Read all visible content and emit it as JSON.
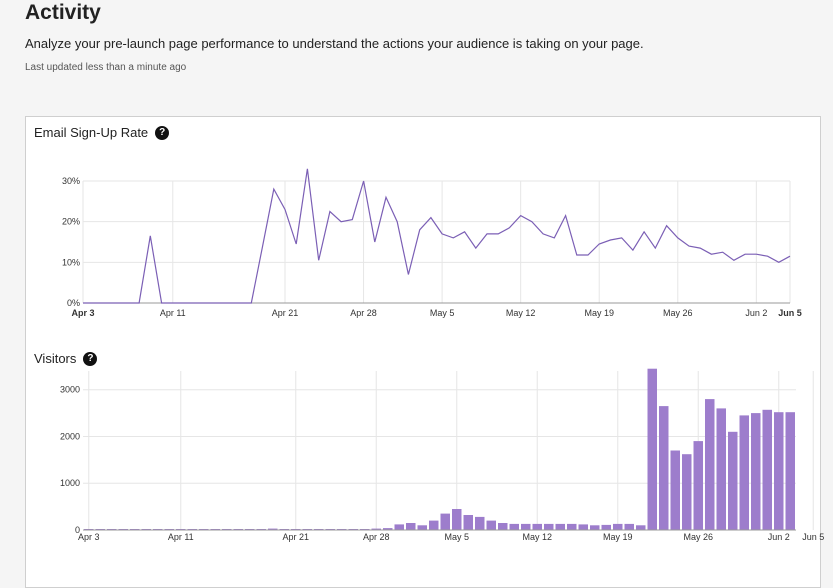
{
  "page": {
    "title": "Activity",
    "description": "Analyze your pre-launch page performance to understand the actions your audience is taking on your page.",
    "last_updated": "Last updated less than a minute ago"
  },
  "colors": {
    "line": "#7b5fb5",
    "bar": "#9d7dcc",
    "grid": "#e6e6e6"
  },
  "icons": {
    "help": "question-circle-icon",
    "help_glyph": "?"
  },
  "chart_data": [
    {
      "type": "line",
      "title": "Email Sign-Up Rate",
      "x_ticks": [
        {
          "label": "Apr 3",
          "day": 0,
          "bold": true
        },
        {
          "label": "Apr 11",
          "day": 8
        },
        {
          "label": "Apr 21",
          "day": 18
        },
        {
          "label": "Apr 28",
          "day": 25
        },
        {
          "label": "May 5",
          "day": 32
        },
        {
          "label": "May 12",
          "day": 39
        },
        {
          "label": "May 19",
          "day": 46
        },
        {
          "label": "May 26",
          "day": 53
        },
        {
          "label": "Jun 2",
          "day": 60
        },
        {
          "label": "Jun 5",
          "day": 63,
          "bold": true
        }
      ],
      "y_ticks": [
        "0%",
        "10%",
        "20%",
        "30%"
      ],
      "ylim": [
        0,
        30
      ],
      "values": [
        0,
        0,
        0,
        0,
        0,
        0,
        16.5,
        0,
        0,
        0,
        0,
        0,
        0,
        0,
        0,
        0,
        14,
        28,
        23,
        14.5,
        33,
        10.5,
        22.5,
        20,
        20.5,
        30,
        15,
        26,
        20,
        7,
        18,
        21,
        17,
        16,
        17.5,
        13.5,
        17,
        17,
        18.5,
        21.5,
        20,
        17,
        16,
        21.5,
        11.8,
        11.8,
        14.5,
        15.5,
        16,
        13,
        17.5,
        13.5,
        19,
        16,
        14,
        13.5,
        12,
        12.5,
        10.5,
        12,
        12,
        11.5,
        10,
        11.5
      ]
    },
    {
      "type": "bar",
      "title": "Visitors",
      "x_ticks": [
        {
          "label": "Apr 3",
          "day": 0
        },
        {
          "label": "Apr 11",
          "day": 8
        },
        {
          "label": "Apr 21",
          "day": 18
        },
        {
          "label": "Apr 28",
          "day": 25
        },
        {
          "label": "May 5",
          "day": 32
        },
        {
          "label": "May 12",
          "day": 39
        },
        {
          "label": "May 19",
          "day": 46
        },
        {
          "label": "May 26",
          "day": 53
        },
        {
          "label": "Jun 2",
          "day": 60
        },
        {
          "label": "Jun 5",
          "day": 63
        }
      ],
      "y_ticks": [
        "0",
        "1000",
        "2000",
        "3000"
      ],
      "ylim": [
        0,
        3400
      ],
      "values": [
        10,
        10,
        10,
        10,
        10,
        10,
        10,
        10,
        10,
        10,
        10,
        10,
        10,
        10,
        10,
        20,
        30,
        20,
        10,
        10,
        10,
        10,
        10,
        10,
        10,
        30,
        40,
        120,
        150,
        100,
        200,
        350,
        450,
        320,
        280,
        200,
        150,
        130,
        130,
        130,
        130,
        130,
        130,
        120,
        100,
        110,
        130,
        130,
        100,
        3450,
        2650,
        1700,
        1620,
        1900,
        2800,
        2600,
        2100,
        2450,
        2500,
        2570,
        2520,
        2520
      ]
    }
  ]
}
